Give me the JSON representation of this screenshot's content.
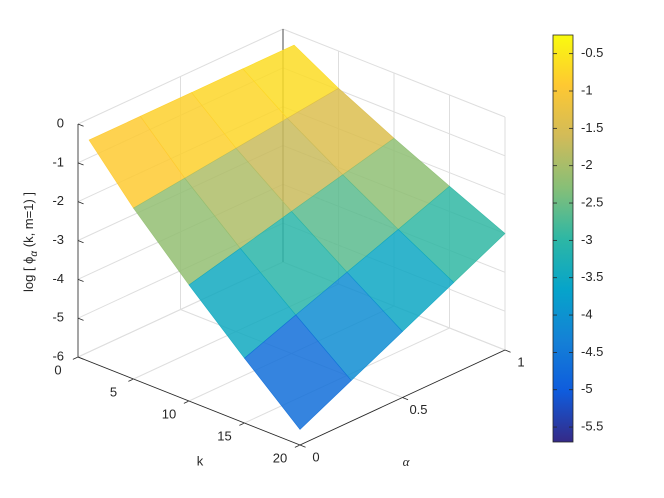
{
  "chart_data": {
    "type": "surface",
    "zlabel": {
      "pre": "log [ ϕ",
      "sub": "α",
      "post": " (k, m=1) ]"
    },
    "xlabel": "k",
    "ylabel": "α",
    "x": [
      1,
      5,
      10,
      15,
      20
    ],
    "y": [
      0,
      0.25,
      0.5,
      0.75,
      1
    ],
    "z": [
      [
        -0.3,
        -0.3,
        -0.3,
        -0.3,
        -0.3
      ],
      [
        -1.6,
        -1.44,
        -1.28,
        -1.12,
        -0.96
      ],
      [
        -3.01,
        -2.68,
        -2.34,
        -2.01,
        -1.68
      ],
      [
        -4.33,
        -3.83,
        -3.34,
        -2.85,
        -2.35
      ],
      [
        -5.6,
        -4.95,
        -4.3,
        -3.65,
        -3.0
      ]
    ],
    "xlim": [
      0,
      20
    ],
    "xticks": [
      0,
      5,
      10,
      15,
      20
    ],
    "ylim": [
      0,
      1
    ],
    "yticks": [
      0,
      0.5,
      1
    ],
    "zlim": [
      -6,
      0
    ],
    "zticks": [
      -6,
      -5,
      -4,
      -3,
      -2,
      -1,
      0
    ],
    "clim": [
      -5.7,
      -0.25
    ],
    "cticks": [
      -5.5,
      -5,
      -4.5,
      -4,
      -3.5,
      -3,
      -2.5,
      -2,
      -1.5,
      -1,
      -0.5
    ],
    "colormap": [
      "#352a87",
      "#0f5cdd",
      "#1481d6",
      "#06a4ca",
      "#2eb7a4",
      "#87bf77",
      "#d1bb59",
      "#fec832",
      "#f9fb0e"
    ],
    "grid": true
  }
}
